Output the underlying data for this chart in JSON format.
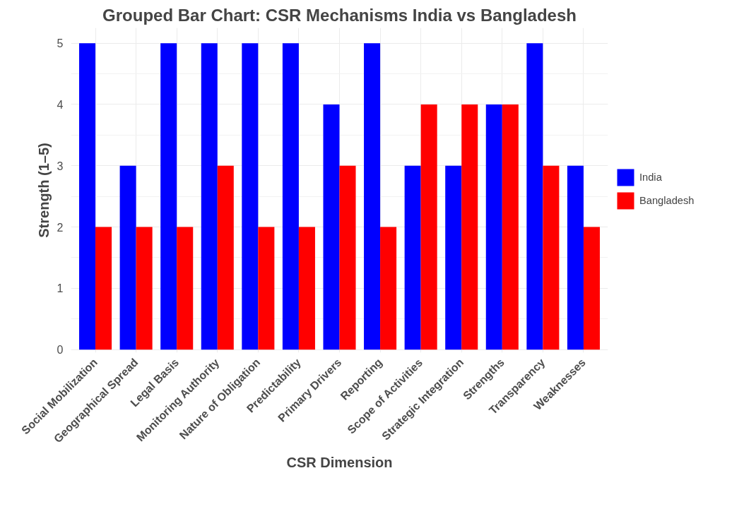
{
  "chart_data": {
    "type": "bar",
    "title": "Grouped Bar Chart: CSR Mechanisms India vs Bangladesh",
    "xlabel": "CSR Dimension",
    "ylabel": "Strength (1–5)",
    "categories": [
      "Social Mobilization",
      "Geographical Spread",
      "Legal Basis",
      "Monitoring Authority",
      "Nature of Obligation",
      "Predictability",
      "Primary Drivers",
      "Reporting",
      "Scope of Activities",
      "Strategic Integration",
      "Strengths",
      "Transparency",
      "Weaknesses"
    ],
    "series": [
      {
        "name": "India",
        "color": "#0000ff",
        "values": [
          5,
          3,
          5,
          5,
          5,
          5,
          4,
          5,
          3,
          3,
          4,
          5,
          3
        ]
      },
      {
        "name": "Bangladesh",
        "color": "#ff0000",
        "values": [
          2,
          2,
          2,
          3,
          2,
          2,
          3,
          2,
          4,
          4,
          4,
          3,
          2
        ]
      }
    ],
    "ylim": [
      -0.05,
      5.25
    ],
    "yticks": [
      0,
      1,
      2,
      3,
      4,
      5
    ],
    "grid": true,
    "legend": "right"
  }
}
